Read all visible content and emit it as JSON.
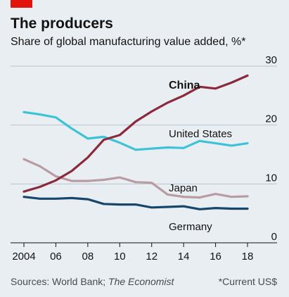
{
  "brand": {
    "accent_color": "#e3120b"
  },
  "chart_data": {
    "type": "line",
    "title": "The producers",
    "subtitle": "Share of global manufacturing value added, %*",
    "source_prefix": "Sources: World Bank; ",
    "source_italic": "The Economist",
    "footnote": "*Current US$",
    "x_ticks": [
      "2004",
      "06",
      "08",
      "10",
      "12",
      "14",
      "16",
      "18"
    ],
    "x_tick_values": [
      2004,
      2006,
      2008,
      2010,
      2012,
      2014,
      2016,
      2018
    ],
    "xlim": [
      2004,
      2018
    ],
    "y_ticks": [
      "0",
      "10",
      "20",
      "30"
    ],
    "y_tick_values": [
      0,
      10,
      20,
      30
    ],
    "ylim": [
      0,
      30
    ],
    "y_axis_position": "right",
    "grid": "horizontal",
    "x": [
      2004,
      2005,
      2006,
      2007,
      2008,
      2009,
      2010,
      2011,
      2012,
      2013,
      2014,
      2015,
      2016,
      2017,
      2018
    ],
    "series": [
      {
        "name": "China",
        "color": "#8b2a3e",
        "bold_label": true,
        "values": [
          8.7,
          9.5,
          10.6,
          12.2,
          14.5,
          17.5,
          18.3,
          20.6,
          22.3,
          23.8,
          25.0,
          26.5,
          26.2,
          27.2,
          28.4
        ]
      },
      {
        "name": "United States",
        "color": "#3ec3d6",
        "bold_label": false,
        "values": [
          22.2,
          21.8,
          21.3,
          19.4,
          17.7,
          18.0,
          17.0,
          15.8,
          16.0,
          16.2,
          16.1,
          17.3,
          16.9,
          16.5,
          16.9
        ]
      },
      {
        "name": "Japan",
        "color": "#b99ba2",
        "bold_label": false,
        "values": [
          14.2,
          13.0,
          11.3,
          10.5,
          10.5,
          10.7,
          11.1,
          10.3,
          10.2,
          8.2,
          7.8,
          7.7,
          8.3,
          7.8,
          7.9
        ]
      },
      {
        "name": "Germany",
        "color": "#16466b",
        "bold_label": false,
        "values": [
          7.8,
          7.5,
          7.5,
          7.6,
          7.4,
          6.6,
          6.5,
          6.5,
          6.0,
          6.1,
          6.2,
          5.7,
          5.9,
          5.8,
          5.8
        ]
      }
    ]
  }
}
